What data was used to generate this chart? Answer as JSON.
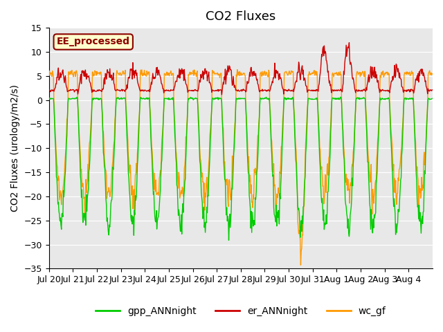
{
  "title": "CO2 Fluxes",
  "ylabel": "CO2 Fluxes (urology/m2/s)",
  "xlabel": "",
  "ylim": [
    -35,
    15
  ],
  "yticks": [
    -35,
    -30,
    -25,
    -20,
    -15,
    -10,
    -5,
    0,
    5,
    10,
    15
  ],
  "annotation": "EE_processed",
  "bg_color": "#e8e8e8",
  "fig_color": "#ffffff",
  "line_colors": {
    "gpp": "#00cc00",
    "er": "#cc0000",
    "wc": "#ff9900"
  },
  "legend_labels": [
    "gpp_ANNnight",
    "er_ANNnight",
    "wc_gf"
  ],
  "n_days": 16,
  "xtick_labels": [
    "Jul 20",
    "Jul 21",
    "Jul 22",
    "Jul 23",
    "Jul 24",
    "Jul 25",
    "Jul 26",
    "Jul 27",
    "Jul 28",
    "Jul 29",
    "Jul 30",
    "Jul 31",
    "Aug 1",
    "Aug 2",
    "Aug 3",
    "Aug 4"
  ],
  "title_fontsize": 13,
  "label_fontsize": 10,
  "tick_fontsize": 9,
  "legend_fontsize": 10,
  "linewidth": 1.0
}
